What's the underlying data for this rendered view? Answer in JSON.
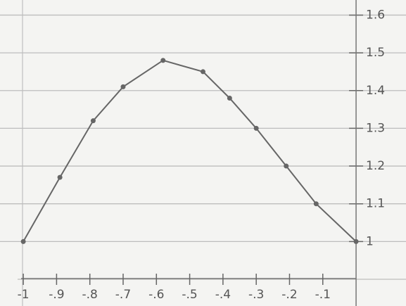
{
  "chart_data": {
    "type": "line",
    "x": [
      -1,
      -0.89,
      -0.79,
      -0.7,
      -0.58,
      -0.46,
      -0.38,
      -0.3,
      -0.21,
      -0.12,
      0
    ],
    "series": [
      {
        "color": "#666666",
        "values": [
          1.0,
          1.17,
          1.32,
          1.41,
          1.48,
          1.45,
          1.38,
          1.3,
          1.2,
          1.1,
          1.0
        ]
      }
    ],
    "xlim": [
      -1.07,
      0.15
    ],
    "ylim": [
      0.9,
      1.64
    ],
    "xticks": [
      -1,
      {
        "value": -0.9,
        "label": "-.9"
      },
      {
        "value": -0.8,
        "label": "-.8"
      },
      {
        "value": -0.7,
        "label": "-.7"
      },
      {
        "value": -0.6,
        "label": "-.6"
      },
      {
        "value": -0.5,
        "label": "-.5"
      },
      {
        "value": -0.4,
        "label": "-.4"
      },
      {
        "value": -0.3,
        "label": "-.3"
      },
      {
        "value": -0.2,
        "label": "-.2"
      },
      {
        "value": -0.1,
        "label": "-.1"
      }
    ],
    "yticks": [
      1,
      1.1,
      1.2,
      1.3,
      1.4,
      1.5,
      1.6
    ],
    "grid": true
  }
}
